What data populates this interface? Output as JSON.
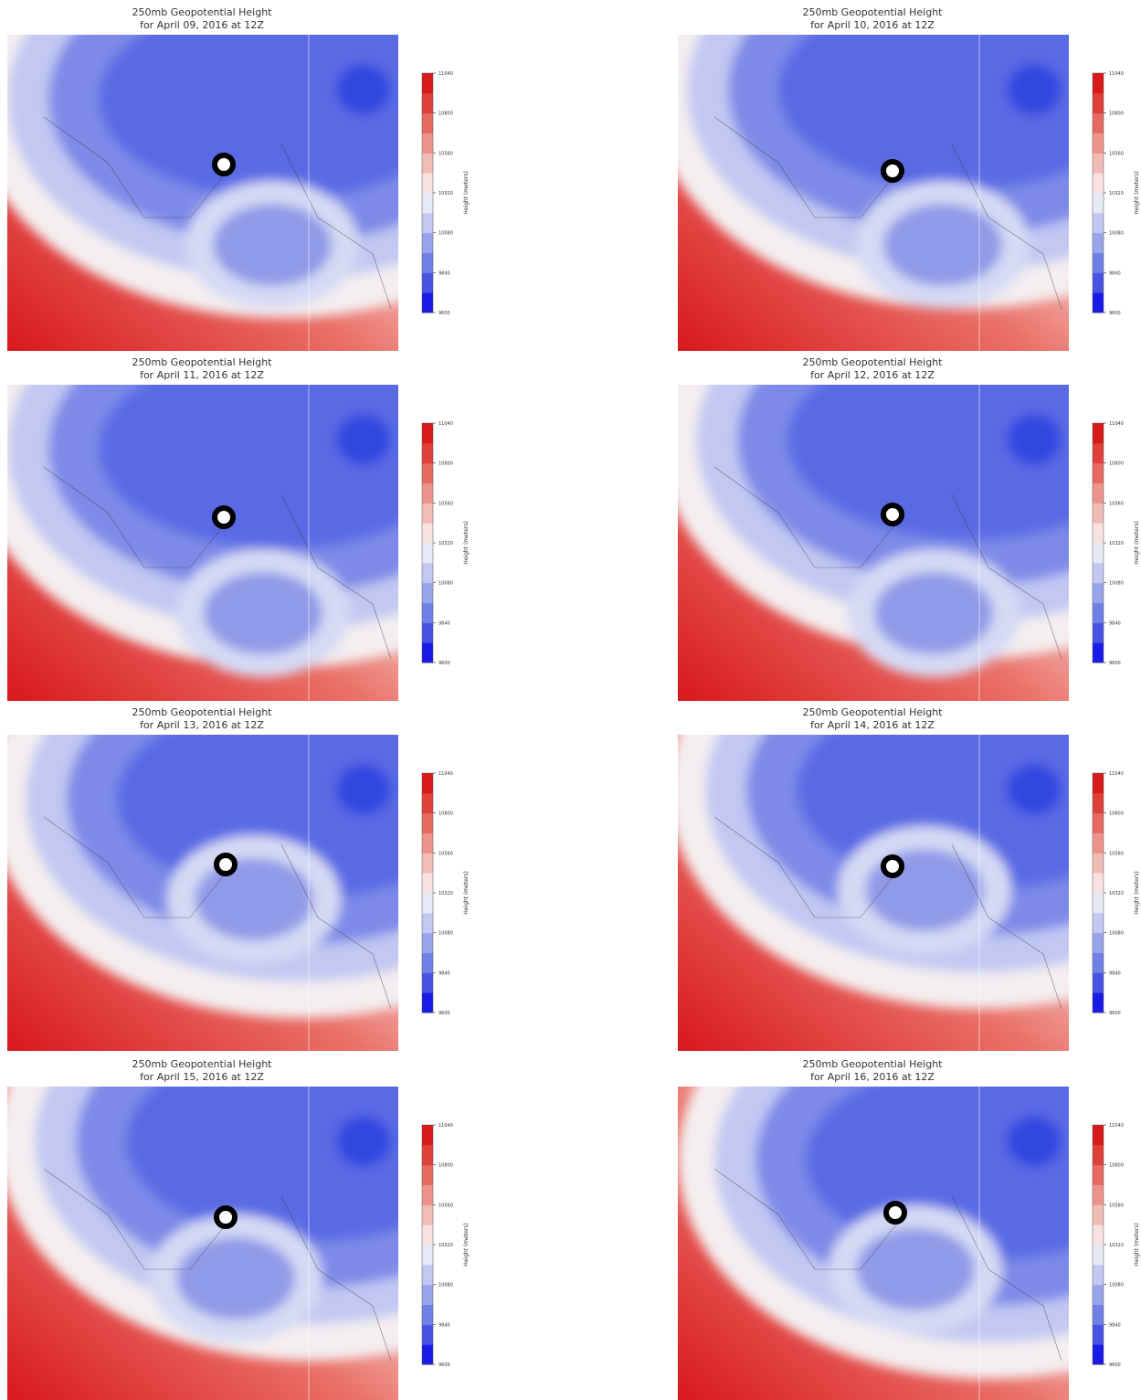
{
  "panels": [
    {
      "title": "250mb Geopotential Height",
      "subtitle": "for April 09, 2016 at 12Z"
    },
    {
      "title": "250mb Geopotential Height",
      "subtitle": "for April 10, 2016 at 12Z"
    },
    {
      "title": "250mb Geopotential Height",
      "subtitle": "for April 11, 2016 at 12Z"
    },
    {
      "title": "250mb Geopotential Height",
      "subtitle": "for April 12, 2016 at 12Z"
    },
    {
      "title": "250mb Geopotential Height",
      "subtitle": "for April 13, 2016 at 12Z"
    },
    {
      "title": "250mb Geopotential Height",
      "subtitle": "for April 14, 2016 at 12Z"
    },
    {
      "title": "250mb Geopotential Height",
      "subtitle": "for April 15, 2016 at 12Z"
    },
    {
      "title": "250mb Geopotential Height",
      "subtitle": "for April 16, 2016 at 12Z"
    }
  ],
  "colorbar": {
    "label": "Height (meters)",
    "range": [
      9600,
      11040
    ],
    "ticks": [
      9600,
      9840,
      10080,
      10320,
      10560,
      10800,
      11040
    ]
  }
}
